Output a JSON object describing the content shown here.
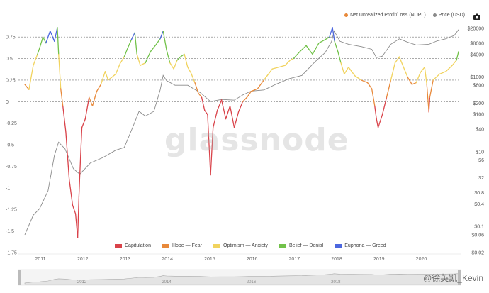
{
  "legend_top": {
    "nupl_label": "Net Unrealized Profit/Loss (NUPL)",
    "price_label": "Price (USD)",
    "nupl_color": "#e8893a",
    "price_color": "#8a8a8a"
  },
  "legend_bottom": [
    {
      "label": "Capitulation",
      "color": "#d9434a"
    },
    {
      "label": "Hope — Fear",
      "color": "#e8893a"
    },
    {
      "label": "Optimism — Anxiety",
      "color": "#f1d35e"
    },
    {
      "label": "Belief — Denial",
      "color": "#72c24a"
    },
    {
      "label": "Euphoria — Greed",
      "color": "#4c67df"
    }
  ],
  "watermark": "glassnode",
  "weibo_tag": "@徐英凯_Kevin",
  "navigator_labels": [
    "2012",
    "2014",
    "2016",
    "2018"
  ],
  "chart_data": {
    "type": "line",
    "x_ticks": [
      "2011",
      "2012",
      "2013",
      "2014",
      "2015",
      "2016",
      "2017",
      "2018",
      "2019",
      "2020"
    ],
    "left_axis": {
      "ticks": [
        "0.75",
        "0.5",
        "0.25",
        "0",
        "-0.25",
        "-0.5",
        "-0.75",
        "-1",
        "-1.25",
        "-1.5",
        "-1.75"
      ],
      "values": [
        0.75,
        0.5,
        0.25,
        0,
        -0.25,
        -0.5,
        -0.75,
        -1,
        -1.25,
        -1.5,
        -1.75
      ],
      "range": [
        -1.75,
        0.85
      ]
    },
    "right_axis": {
      "ticks": [
        "$20000",
        "$8000",
        "$4000",
        "$1000",
        "$600",
        "$200",
        "$100",
        "$40",
        "$10",
        "$6",
        "$2",
        "$0.8",
        "$0.4",
        "$0.1",
        "$0.06",
        "$0.02"
      ],
      "values": [
        20000,
        8000,
        4000,
        1000,
        600,
        200,
        100,
        40,
        10,
        6,
        2,
        0.8,
        0.4,
        0.1,
        0.06,
        0.02
      ],
      "scale": "log",
      "range": [
        0.02,
        20000
      ]
    },
    "zones": [
      {
        "name": "Capitulation",
        "max": 0,
        "color": "#d9434a"
      },
      {
        "name": "Hope — Fear",
        "min": 0,
        "max": 0.25,
        "color": "#e8893a"
      },
      {
        "name": "Optimism — Anxiety",
        "min": 0.25,
        "max": 0.5,
        "color": "#f1d35e"
      },
      {
        "name": "Belief — Denial",
        "min": 0.5,
        "max": 0.75,
        "color": "#72c24a"
      },
      {
        "name": "Euphoria — Greed",
        "min": 0.75,
        "color": "#4c67df"
      }
    ],
    "nupl_series": {
      "name": "Net Unrealized Profit/Loss (NUPL)",
      "x": [
        2010.65,
        2010.75,
        2010.85,
        2010.95,
        2011.0,
        2011.08,
        2011.15,
        2011.25,
        2011.35,
        2011.42,
        2011.45,
        2011.5,
        2011.55,
        2011.62,
        2011.7,
        2011.78,
        2011.85,
        2011.9,
        2011.93,
        2011.97,
        2012.0,
        2012.08,
        2012.17,
        2012.25,
        2012.35,
        2012.45,
        2012.55,
        2012.62,
        2012.7,
        2012.8,
        2012.9,
        2013.0,
        2013.08,
        2013.17,
        2013.25,
        2013.3,
        2013.38,
        2013.5,
        2013.62,
        2013.75,
        2013.85,
        2013.92,
        2014.0,
        2014.08,
        2014.17,
        2014.25,
        2014.33,
        2014.42,
        2014.5,
        2014.58,
        2014.67,
        2014.75,
        2014.83,
        2014.9,
        2014.97,
        2015.04,
        2015.1,
        2015.2,
        2015.3,
        2015.4,
        2015.5,
        2015.6,
        2015.7,
        2015.8,
        2015.9,
        2016.0,
        2016.15,
        2016.3,
        2016.5,
        2016.65,
        2016.8,
        2016.92,
        2017.0,
        2017.15,
        2017.3,
        2017.45,
        2017.6,
        2017.75,
        2017.85,
        2017.92,
        2017.97,
        2018.05,
        2018.12,
        2018.2,
        2018.3,
        2018.45,
        2018.6,
        2018.75,
        2018.85,
        2018.92,
        2018.96,
        2019.0,
        2019.1,
        2019.2,
        2019.3,
        2019.4,
        2019.5,
        2019.6,
        2019.7,
        2019.8,
        2019.9,
        2020.0,
        2020.1,
        2020.15,
        2020.2,
        2020.22,
        2020.3,
        2020.45,
        2020.6,
        2020.75,
        2020.85,
        2020.9
      ],
      "y": [
        0.2,
        0.14,
        0.42,
        0.55,
        0.62,
        0.75,
        0.68,
        0.82,
        0.7,
        0.86,
        0.55,
        0.15,
        -0.05,
        -0.35,
        -0.9,
        -1.2,
        -1.3,
        -1.58,
        -1.1,
        -0.62,
        -0.3,
        -0.2,
        0.05,
        -0.05,
        0.12,
        0.2,
        0.35,
        0.25,
        0.28,
        0.32,
        0.44,
        0.52,
        0.62,
        0.72,
        0.8,
        0.55,
        0.42,
        0.45,
        0.58,
        0.66,
        0.73,
        0.82,
        0.6,
        0.45,
        0.38,
        0.48,
        0.52,
        0.55,
        0.4,
        0.33,
        0.22,
        0.1,
        0.05,
        -0.1,
        -0.15,
        -0.85,
        -0.3,
        -0.1,
        0.02,
        -0.2,
        -0.05,
        -0.3,
        -0.12,
        0.0,
        0.05,
        0.12,
        0.15,
        0.25,
        0.38,
        0.4,
        0.42,
        0.48,
        0.5,
        0.58,
        0.65,
        0.55,
        0.68,
        0.72,
        0.75,
        0.86,
        0.7,
        0.58,
        0.45,
        0.32,
        0.4,
        0.3,
        0.25,
        0.22,
        0.15,
        -0.05,
        -0.2,
        -0.3,
        -0.15,
        0.05,
        0.25,
        0.45,
        0.52,
        0.4,
        0.28,
        0.2,
        0.22,
        0.34,
        0.4,
        0.2,
        -0.12,
        0.05,
        0.25,
        0.32,
        0.35,
        0.42,
        0.48,
        0.58
      ]
    },
    "price_series": {
      "name": "Price (USD)",
      "x": [
        2010.65,
        2010.85,
        2011.0,
        2011.2,
        2011.35,
        2011.45,
        2011.6,
        2011.8,
        2011.95,
        2012.2,
        2012.5,
        2012.8,
        2013.0,
        2013.2,
        2013.35,
        2013.5,
        2013.7,
        2013.85,
        2013.92,
        2014.0,
        2014.2,
        2014.5,
        2014.8,
        2015.04,
        2015.3,
        2015.6,
        2015.8,
        2016.0,
        2016.3,
        2016.6,
        2016.9,
        2017.2,
        2017.5,
        2017.75,
        2017.9,
        2017.96,
        2018.1,
        2018.3,
        2018.6,
        2018.85,
        2018.96,
        2019.1,
        2019.3,
        2019.5,
        2019.7,
        2019.9,
        2020.2,
        2020.4,
        2020.6,
        2020.8,
        2020.9
      ],
      "y": [
        0.06,
        0.2,
        0.3,
        0.9,
        8,
        18,
        12,
        3.5,
        2.5,
        5,
        7,
        11,
        13,
        45,
        120,
        90,
        120,
        450,
        1100,
        800,
        600,
        600,
        380,
        220,
        250,
        240,
        330,
        420,
        450,
        650,
        900,
        1100,
        2500,
        4500,
        9000,
        17000,
        9000,
        7500,
        6500,
        5500,
        3300,
        3600,
        7500,
        10500,
        8500,
        7200,
        7500,
        9300,
        10500,
        13000,
        18500
      ]
    }
  }
}
